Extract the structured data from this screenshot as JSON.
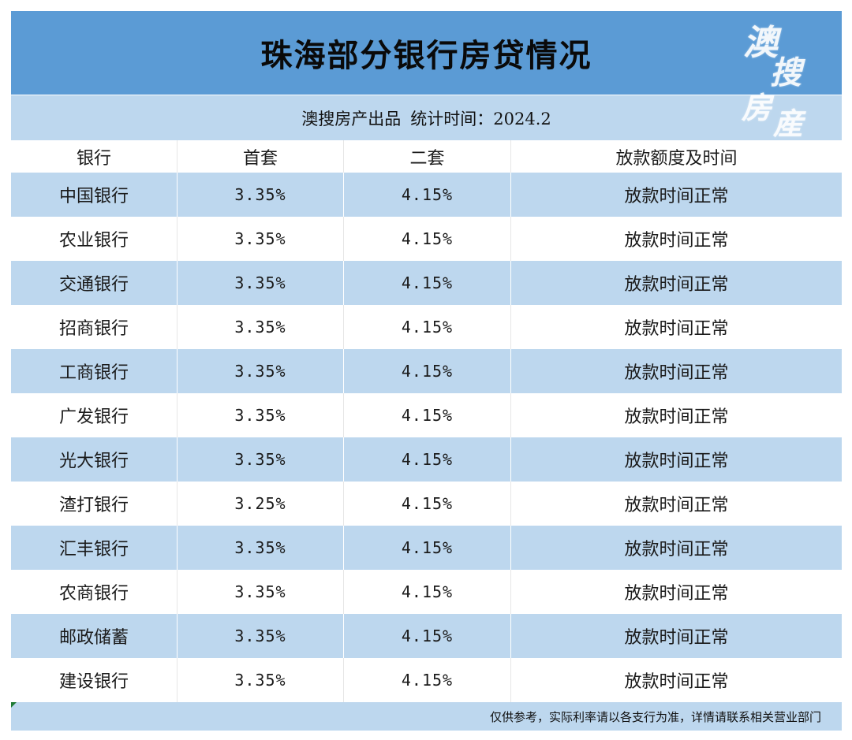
{
  "title": "珠海部分银行房贷情况",
  "subtitle": {
    "source": "澳搜房产出品",
    "stat_time": "统计时间：2024.2"
  },
  "logo": {
    "chars": [
      "澳",
      "搜",
      "房",
      "産"
    ]
  },
  "table": {
    "headers": [
      "银行",
      "首套",
      "二套",
      "放款额度及时间"
    ],
    "rows": [
      [
        "中国银行",
        "3.35%",
        "4.15%",
        "放款时间正常"
      ],
      [
        "农业银行",
        "3.35%",
        "4.15%",
        "放款时间正常"
      ],
      [
        "交通银行",
        "3.35%",
        "4.15%",
        "放款时间正常"
      ],
      [
        "招商银行",
        "3.35%",
        "4.15%",
        "放款时间正常"
      ],
      [
        "工商银行",
        "3.35%",
        "4.15%",
        "放款时间正常"
      ],
      [
        "广发银行",
        "3.35%",
        "4.15%",
        "放款时间正常"
      ],
      [
        "光大银行",
        "3.35%",
        "4.15%",
        "放款时间正常"
      ],
      [
        "渣打银行",
        "3.25%",
        "4.15%",
        "放款时间正常"
      ],
      [
        "汇丰银行",
        "3.35%",
        "4.15%",
        "放款时间正常"
      ],
      [
        "农商银行",
        "3.35%",
        "4.15%",
        "放款时间正常"
      ],
      [
        "邮政储蓄",
        "3.35%",
        "4.15%",
        "放款时间正常"
      ],
      [
        "建设银行",
        "3.35%",
        "4.15%",
        "放款时间正常"
      ]
    ]
  },
  "footer": "仅供参考，实际利率请以各支行为准，详情请联系相关营业部门",
  "colors": {
    "title_bg": "#5b9bd5",
    "band_bg": "#bdd7ee",
    "plain_bg": "#ffffff"
  }
}
